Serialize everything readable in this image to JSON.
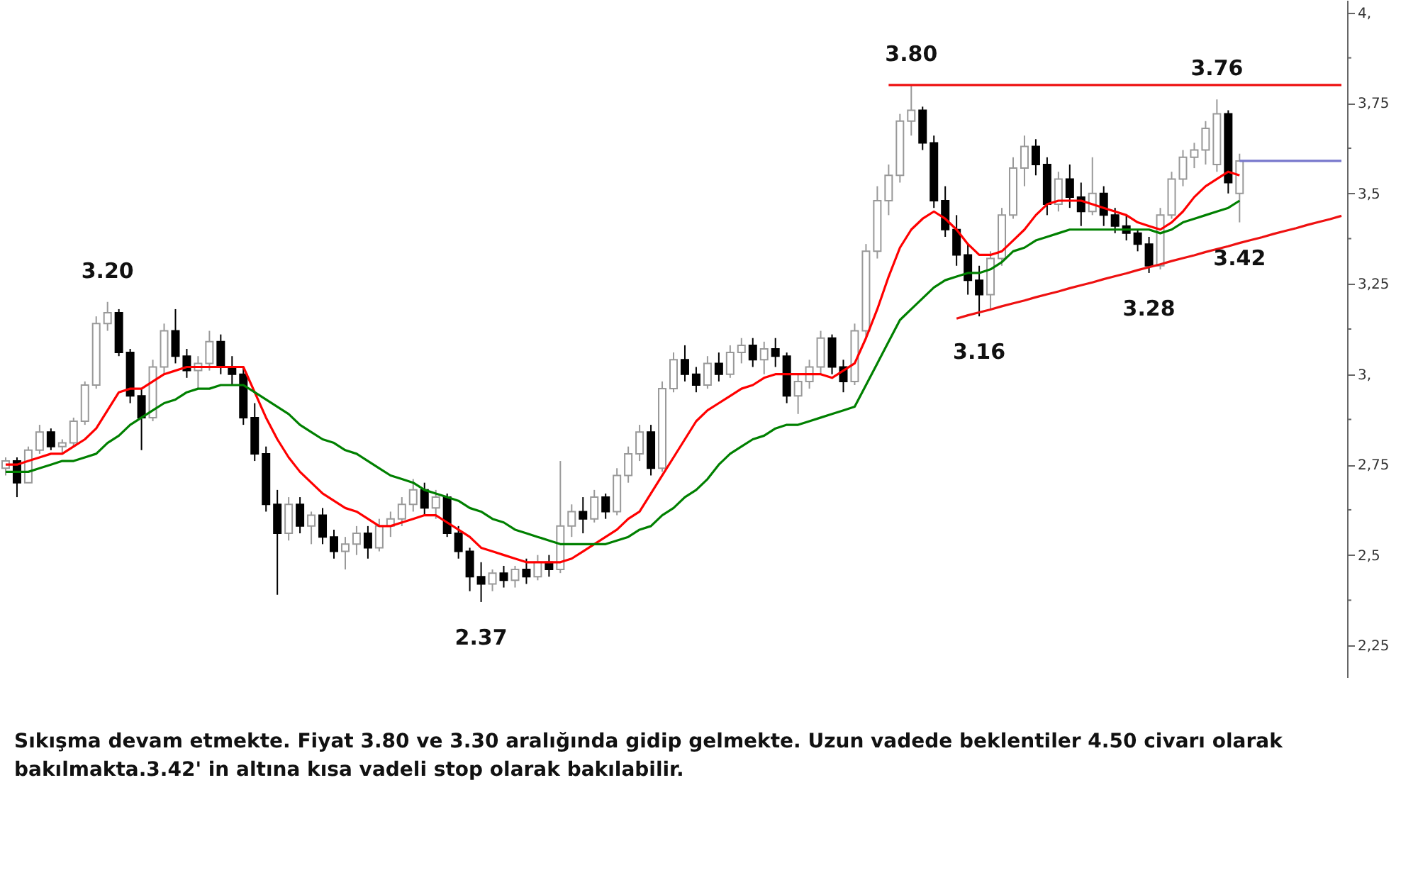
{
  "chart_data": {
    "type": "candlestick",
    "categories": [
      null,
      null,
      null,
      null,
      null,
      null,
      null,
      null,
      null,
      null,
      null,
      null,
      null,
      null,
      null,
      null,
      null,
      null,
      null,
      null,
      null,
      null,
      null,
      null,
      null,
      null,
      null,
      null,
      null,
      null,
      null,
      null,
      null,
      null,
      null,
      null,
      null,
      null,
      null,
      null,
      null,
      null,
      null,
      null,
      null,
      null,
      null,
      null,
      null,
      null,
      null,
      null,
      null,
      null,
      null,
      null,
      null,
      null,
      null,
      null,
      null,
      null,
      null,
      null,
      null,
      null,
      null,
      null,
      null,
      null,
      null,
      null,
      null,
      null,
      null,
      null,
      null,
      null,
      null,
      null,
      null,
      null,
      null,
      null,
      null,
      null,
      null,
      null,
      null,
      null,
      null,
      null,
      null,
      null,
      null,
      null,
      null,
      null,
      null,
      null,
      null,
      null,
      null,
      null,
      null,
      null,
      null,
      null,
      null,
      null,
      null,
      null,
      null,
      null,
      null,
      null,
      null,
      null,
      null
    ],
    "ohlc": [
      [
        2.74,
        2.77,
        2.72,
        2.76
      ],
      [
        2.76,
        2.77,
        2.66,
        2.7
      ],
      [
        2.7,
        2.8,
        2.7,
        2.79
      ],
      [
        2.79,
        2.86,
        2.78,
        2.84
      ],
      [
        2.84,
        2.85,
        2.79,
        2.8
      ],
      [
        2.8,
        2.82,
        2.78,
        2.81
      ],
      [
        2.81,
        2.88,
        2.8,
        2.87
      ],
      [
        2.87,
        2.98,
        2.86,
        2.97
      ],
      [
        2.97,
        3.16,
        2.96,
        3.14
      ],
      [
        3.14,
        3.2,
        3.12,
        3.17
      ],
      [
        3.17,
        3.18,
        3.05,
        3.06
      ],
      [
        3.06,
        3.07,
        2.92,
        2.94
      ],
      [
        2.94,
        2.96,
        2.79,
        2.88
      ],
      [
        2.88,
        3.04,
        2.87,
        3.02
      ],
      [
        3.02,
        3.14,
        3.0,
        3.12
      ],
      [
        3.12,
        3.18,
        3.03,
        3.05
      ],
      [
        3.05,
        3.07,
        2.99,
        3.01
      ],
      [
        3.01,
        3.05,
        2.96,
        3.03
      ],
      [
        3.03,
        3.12,
        3.01,
        3.09
      ],
      [
        3.09,
        3.11,
        3.0,
        3.02
      ],
      [
        3.02,
        3.05,
        2.97,
        3.0
      ],
      [
        3.0,
        3.02,
        2.86,
        2.88
      ],
      [
        2.88,
        2.92,
        2.76,
        2.78
      ],
      [
        2.78,
        2.8,
        2.62,
        2.64
      ],
      [
        2.64,
        2.68,
        2.39,
        2.56
      ],
      [
        2.56,
        2.66,
        2.54,
        2.64
      ],
      [
        2.64,
        2.66,
        2.56,
        2.58
      ],
      [
        2.58,
        2.62,
        2.53,
        2.61
      ],
      [
        2.61,
        2.63,
        2.53,
        2.55
      ],
      [
        2.55,
        2.57,
        2.49,
        2.51
      ],
      [
        2.51,
        2.55,
        2.46,
        2.53
      ],
      [
        2.53,
        2.58,
        2.5,
        2.56
      ],
      [
        2.56,
        2.58,
        2.49,
        2.52
      ],
      [
        2.52,
        2.6,
        2.51,
        2.58
      ],
      [
        2.58,
        2.62,
        2.55,
        2.6
      ],
      [
        2.6,
        2.66,
        2.58,
        2.64
      ],
      [
        2.64,
        2.71,
        2.62,
        2.68
      ],
      [
        2.68,
        2.7,
        2.61,
        2.63
      ],
      [
        2.63,
        2.68,
        2.6,
        2.66
      ],
      [
        2.66,
        2.67,
        2.55,
        2.56
      ],
      [
        2.56,
        2.58,
        2.49,
        2.51
      ],
      [
        2.51,
        2.52,
        2.4,
        2.44
      ],
      [
        2.44,
        2.48,
        2.37,
        2.42
      ],
      [
        2.42,
        2.46,
        2.4,
        2.45
      ],
      [
        2.45,
        2.47,
        2.41,
        2.43
      ],
      [
        2.43,
        2.47,
        2.41,
        2.46
      ],
      [
        2.46,
        2.49,
        2.42,
        2.44
      ],
      [
        2.44,
        2.5,
        2.43,
        2.48
      ],
      [
        2.48,
        2.5,
        2.44,
        2.46
      ],
      [
        2.46,
        2.76,
        2.45,
        2.58
      ],
      [
        2.58,
        2.64,
        2.55,
        2.62
      ],
      [
        2.62,
        2.66,
        2.56,
        2.6
      ],
      [
        2.6,
        2.68,
        2.59,
        2.66
      ],
      [
        2.66,
        2.67,
        2.6,
        2.62
      ],
      [
        2.62,
        2.74,
        2.61,
        2.72
      ],
      [
        2.72,
        2.8,
        2.7,
        2.78
      ],
      [
        2.78,
        2.86,
        2.76,
        2.84
      ],
      [
        2.84,
        2.86,
        2.72,
        2.74
      ],
      [
        2.74,
        2.98,
        2.73,
        2.96
      ],
      [
        2.96,
        3.06,
        2.95,
        3.04
      ],
      [
        3.04,
        3.08,
        2.98,
        3.0
      ],
      [
        3.0,
        3.02,
        2.95,
        2.97
      ],
      [
        2.97,
        3.05,
        2.96,
        3.03
      ],
      [
        3.03,
        3.06,
        2.98,
        3.0
      ],
      [
        3.0,
        3.08,
        2.99,
        3.06
      ],
      [
        3.06,
        3.1,
        3.03,
        3.08
      ],
      [
        3.08,
        3.1,
        3.02,
        3.04
      ],
      [
        3.04,
        3.09,
        3.0,
        3.07
      ],
      [
        3.07,
        3.1,
        3.02,
        3.05
      ],
      [
        3.05,
        3.06,
        2.92,
        2.94
      ],
      [
        2.94,
        3.0,
        2.89,
        2.98
      ],
      [
        2.98,
        3.04,
        2.96,
        3.02
      ],
      [
        3.02,
        3.12,
        3.0,
        3.1
      ],
      [
        3.1,
        3.11,
        3.0,
        3.02
      ],
      [
        3.02,
        3.04,
        2.95,
        2.98
      ],
      [
        2.98,
        3.14,
        2.97,
        3.12
      ],
      [
        3.12,
        3.36,
        3.1,
        3.34
      ],
      [
        3.34,
        3.52,
        3.32,
        3.48
      ],
      [
        3.48,
        3.58,
        3.44,
        3.55
      ],
      [
        3.55,
        3.72,
        3.53,
        3.7
      ],
      [
        3.7,
        3.8,
        3.66,
        3.73
      ],
      [
        3.73,
        3.74,
        3.62,
        3.64
      ],
      [
        3.64,
        3.66,
        3.46,
        3.48
      ],
      [
        3.48,
        3.52,
        3.38,
        3.4
      ],
      [
        3.4,
        3.44,
        3.3,
        3.33
      ],
      [
        3.33,
        3.36,
        3.22,
        3.26
      ],
      [
        3.26,
        3.3,
        3.16,
        3.22
      ],
      [
        3.22,
        3.34,
        3.18,
        3.32
      ],
      [
        3.32,
        3.46,
        3.3,
        3.44
      ],
      [
        3.44,
        3.6,
        3.43,
        3.57
      ],
      [
        3.57,
        3.66,
        3.52,
        3.63
      ],
      [
        3.63,
        3.65,
        3.55,
        3.58
      ],
      [
        3.58,
        3.6,
        3.44,
        3.47
      ],
      [
        3.47,
        3.56,
        3.45,
        3.54
      ],
      [
        3.54,
        3.58,
        3.46,
        3.49
      ],
      [
        3.49,
        3.53,
        3.41,
        3.45
      ],
      [
        3.45,
        3.6,
        3.44,
        3.5
      ],
      [
        3.5,
        3.52,
        3.41,
        3.44
      ],
      [
        3.44,
        3.46,
        3.39,
        3.41
      ],
      [
        3.41,
        3.44,
        3.37,
        3.39
      ],
      [
        3.39,
        3.4,
        3.34,
        3.36
      ],
      [
        3.36,
        3.38,
        3.28,
        3.3
      ],
      [
        3.3,
        3.46,
        3.29,
        3.44
      ],
      [
        3.44,
        3.56,
        3.43,
        3.54
      ],
      [
        3.54,
        3.62,
        3.52,
        3.6
      ],
      [
        3.6,
        3.64,
        3.57,
        3.62
      ],
      [
        3.62,
        3.7,
        3.58,
        3.68
      ],
      [
        3.58,
        3.76,
        3.56,
        3.72
      ],
      [
        3.72,
        3.73,
        3.5,
        3.53
      ],
      [
        3.5,
        3.61,
        3.42,
        3.59
      ],
      null,
      null,
      null,
      null,
      null,
      null,
      null,
      null,
      null
    ],
    "series": [
      {
        "type": "line",
        "color": "#ff0000",
        "values": [
          2.75,
          2.75,
          2.76,
          2.77,
          2.78,
          2.78,
          2.8,
          2.82,
          2.85,
          2.9,
          2.95,
          2.96,
          2.96,
          2.98,
          3.0,
          3.01,
          3.02,
          3.02,
          3.02,
          3.02,
          3.02,
          3.02,
          2.95,
          2.88,
          2.82,
          2.77,
          2.73,
          2.7,
          2.67,
          2.65,
          2.63,
          2.62,
          2.6,
          2.58,
          2.58,
          2.59,
          2.6,
          2.61,
          2.61,
          2.59,
          2.57,
          2.55,
          2.52,
          2.51,
          2.5,
          2.49,
          2.48,
          2.48,
          2.48,
          2.48,
          2.49,
          2.51,
          2.53,
          2.55,
          2.57,
          2.6,
          2.62,
          2.67,
          2.72,
          2.77,
          2.82,
          2.87,
          2.9,
          2.92,
          2.94,
          2.96,
          2.97,
          2.99,
          3.0,
          3.0,
          3.0,
          3.0,
          3.0,
          2.99,
          3.01,
          3.03,
          3.1,
          3.18,
          3.27,
          3.35,
          3.4,
          3.43,
          3.45,
          3.43,
          3.4,
          3.36,
          3.33,
          3.33,
          3.34,
          3.37,
          3.4,
          3.44,
          3.47,
          3.48,
          3.48,
          3.48,
          3.47,
          3.46,
          3.45,
          3.44,
          3.42,
          3.41,
          3.4,
          3.42,
          3.45,
          3.49,
          3.52,
          3.54,
          3.56,
          3.55,
          null,
          null,
          null,
          null,
          null,
          null,
          null,
          null,
          null
        ]
      },
      {
        "type": "line",
        "color": "#008000",
        "values": [
          2.73,
          2.73,
          2.73,
          2.74,
          2.75,
          2.76,
          2.76,
          2.77,
          2.78,
          2.81,
          2.83,
          2.86,
          2.88,
          2.9,
          2.92,
          2.93,
          2.95,
          2.96,
          2.96,
          2.97,
          2.97,
          2.97,
          2.95,
          2.93,
          2.91,
          2.89,
          2.86,
          2.84,
          2.82,
          2.81,
          2.79,
          2.78,
          2.76,
          2.74,
          2.72,
          2.71,
          2.7,
          2.68,
          2.67,
          2.66,
          2.65,
          2.63,
          2.62,
          2.6,
          2.59,
          2.57,
          2.56,
          2.55,
          2.54,
          2.53,
          2.53,
          2.53,
          2.53,
          2.53,
          2.54,
          2.55,
          2.57,
          2.58,
          2.61,
          2.63,
          2.66,
          2.68,
          2.71,
          2.75,
          2.78,
          2.8,
          2.82,
          2.83,
          2.85,
          2.86,
          2.86,
          2.87,
          2.88,
          2.89,
          2.9,
          2.91,
          2.97,
          3.03,
          3.09,
          3.15,
          3.18,
          3.21,
          3.24,
          3.26,
          3.27,
          3.28,
          3.28,
          3.29,
          3.31,
          3.34,
          3.35,
          3.37,
          3.38,
          3.39,
          3.4,
          3.4,
          3.4,
          3.4,
          3.4,
          3.4,
          3.4,
          3.4,
          3.39,
          3.4,
          3.42,
          3.43,
          3.44,
          3.45,
          3.46,
          3.48,
          null,
          null,
          null,
          null,
          null,
          null,
          null,
          null,
          null
        ]
      },
      {
        "type": "line",
        "color": "#ee1111",
        "values": [
          null,
          null,
          null,
          null,
          null,
          null,
          null,
          null,
          null,
          null,
          null,
          null,
          null,
          null,
          null,
          null,
          null,
          null,
          null,
          null,
          null,
          null,
          null,
          null,
          null,
          null,
          null,
          null,
          null,
          null,
          null,
          null,
          null,
          null,
          null,
          null,
          null,
          null,
          null,
          null,
          null,
          null,
          null,
          null,
          null,
          null,
          null,
          null,
          null,
          null,
          null,
          null,
          null,
          null,
          null,
          null,
          null,
          null,
          null,
          null,
          null,
          null,
          null,
          null,
          null,
          null,
          null,
          null,
          null,
          null,
          null,
          null,
          null,
          null,
          null,
          null,
          null,
          null,
          3.8,
          3.8,
          3.8,
          3.8,
          3.8,
          3.8,
          3.8,
          3.8,
          3.8,
          3.8,
          3.8,
          3.8,
          3.8,
          3.8,
          3.8,
          3.8,
          3.8,
          3.8,
          3.8,
          3.8,
          3.8,
          3.8,
          3.8,
          3.8,
          3.8,
          3.8,
          3.8,
          3.8,
          3.8,
          3.8,
          3.8,
          3.8,
          3.8,
          3.8,
          3.8,
          3.8,
          3.8,
          3.8,
          3.8,
          3.8,
          3.8
        ]
      },
      {
        "type": "line",
        "color": "#ee1111",
        "values": [
          null,
          null,
          null,
          null,
          null,
          null,
          null,
          null,
          null,
          null,
          null,
          null,
          null,
          null,
          null,
          null,
          null,
          null,
          null,
          null,
          null,
          null,
          null,
          null,
          null,
          null,
          null,
          null,
          null,
          null,
          null,
          null,
          null,
          null,
          null,
          null,
          null,
          null,
          null,
          null,
          null,
          null,
          null,
          null,
          null,
          null,
          null,
          null,
          null,
          null,
          null,
          null,
          null,
          null,
          null,
          null,
          null,
          null,
          null,
          null,
          null,
          null,
          null,
          null,
          null,
          null,
          null,
          null,
          null,
          null,
          null,
          null,
          null,
          null,
          null,
          null,
          null,
          null,
          null,
          null,
          null,
          null,
          null,
          null,
          3.154,
          3.163,
          3.171,
          3.179,
          3.188,
          3.196,
          3.204,
          3.213,
          3.221,
          3.229,
          3.238,
          3.246,
          3.254,
          3.263,
          3.271,
          3.279,
          3.288,
          3.296,
          3.304,
          3.313,
          3.321,
          3.329,
          3.338,
          3.346,
          3.354,
          3.363,
          3.371,
          3.379,
          3.388,
          3.396,
          3.404,
          3.413,
          3.421,
          3.429,
          3.438
        ]
      },
      {
        "type": "line",
        "color": "#7777cc",
        "values": [
          null,
          null,
          null,
          null,
          null,
          null,
          null,
          null,
          null,
          null,
          null,
          null,
          null,
          null,
          null,
          null,
          null,
          null,
          null,
          null,
          null,
          null,
          null,
          null,
          null,
          null,
          null,
          null,
          null,
          null,
          null,
          null,
          null,
          null,
          null,
          null,
          null,
          null,
          null,
          null,
          null,
          null,
          null,
          null,
          null,
          null,
          null,
          null,
          null,
          null,
          null,
          null,
          null,
          null,
          null,
          null,
          null,
          null,
          null,
          null,
          null,
          null,
          null,
          null,
          null,
          null,
          null,
          null,
          null,
          null,
          null,
          null,
          null,
          null,
          null,
          null,
          null,
          null,
          null,
          null,
          null,
          null,
          null,
          null,
          null,
          null,
          null,
          null,
          null,
          null,
          null,
          null,
          null,
          null,
          null,
          null,
          null,
          null,
          null,
          null,
          null,
          null,
          null,
          null,
          null,
          null,
          null,
          null,
          null,
          3.59,
          3.59,
          3.59,
          3.59,
          3.59,
          3.59,
          3.59,
          3.59,
          3.59,
          3.59
        ]
      }
    ],
    "ylim": [
      2.16,
      4.035
    ],
    "yticks": [
      {
        "value": 2.25,
        "label": "2,25"
      },
      {
        "value": 2.375,
        "label": null
      },
      {
        "value": 2.5,
        "label": "2,5"
      },
      {
        "value": 2.625,
        "label": null
      },
      {
        "value": 2.75,
        "label": "2,75"
      },
      {
        "value": 2.875,
        "label": null
      },
      {
        "value": 3,
        "label": "3,"
      },
      {
        "value": 3.125,
        "label": null
      },
      {
        "value": 3.25,
        "label": "3,25"
      },
      {
        "value": 3.375,
        "label": null
      },
      {
        "value": 3.5,
        "label": "3,5"
      },
      {
        "value": 3.625,
        "label": null
      },
      {
        "value": 3.75,
        "label": "3,75"
      },
      {
        "value": 3.875,
        "label": null
      },
      {
        "value": 4,
        "label": "4,"
      }
    ],
    "tick_labels": "y",
    "annotations": [
      {
        "text": "3.20",
        "y": 3.2
      },
      {
        "text": "2.37",
        "y": 2.37
      },
      {
        "text": "3.80",
        "y": 3.8
      },
      {
        "text": "3.16",
        "y": 3.16
      },
      {
        "text": "3.28",
        "y": 3.28
      },
      {
        "text": "3.76",
        "y": 3.76
      },
      {
        "text": "3.42",
        "y": 3.42
      },
      "Sıkışma devam etmekte. Fiyat 3.80 ve 3.30 aralığında gidip gelmekte. Uzun vadede beklentiler 4.50 civarı olarak bakılmakta.3.42' in altına kısa vadeli stop olarak bakılabilir."
    ]
  }
}
